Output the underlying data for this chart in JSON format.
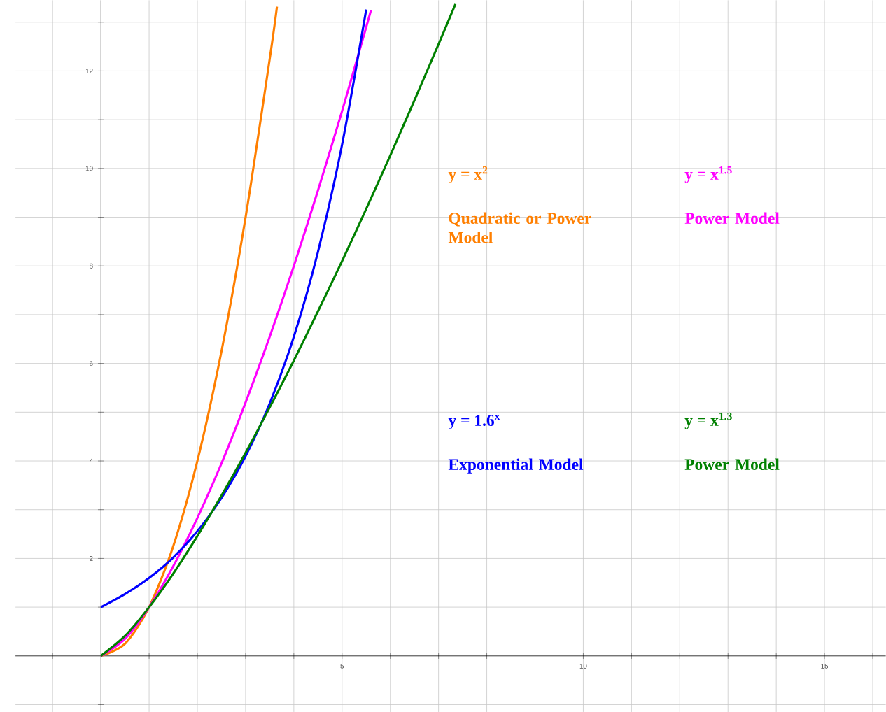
{
  "chart_data": {
    "type": "line",
    "xlim": [
      -1.77,
      16.27
    ],
    "ylim": [
      -1.15,
      13.45
    ],
    "xticks": [
      {
        "value": -1,
        "label": null
      },
      {
        "value": 0,
        "label": null
      },
      {
        "value": 1,
        "label": null
      },
      {
        "value": 2,
        "label": null
      },
      {
        "value": 3,
        "label": null
      },
      {
        "value": 4,
        "label": null
      },
      5,
      {
        "value": 6,
        "label": null
      },
      {
        "value": 7,
        "label": null
      },
      {
        "value": 8,
        "label": null
      },
      {
        "value": 9,
        "label": null
      },
      10,
      {
        "value": 11,
        "label": null
      },
      {
        "value": 12,
        "label": null
      },
      {
        "value": 13,
        "label": null
      },
      {
        "value": 14,
        "label": null
      },
      15,
      {
        "value": 16,
        "label": null
      }
    ],
    "yticks": [
      {
        "value": -1,
        "label": null
      },
      {
        "value": 0,
        "label": null
      },
      {
        "value": 1,
        "label": null
      },
      2,
      {
        "value": 3,
        "label": null
      },
      4,
      {
        "value": 5,
        "label": null
      },
      6,
      {
        "value": 7,
        "label": null
      },
      8,
      {
        "value": 9,
        "label": null
      },
      10,
      {
        "value": 11,
        "label": null
      },
      12,
      {
        "value": 13,
        "label": null
      }
    ],
    "grid": true,
    "series": [
      {
        "name": "y = x$^{2}$",
        "color": "#ff7f00",
        "x": [
          0,
          0.5,
          1,
          1.5,
          2,
          2.5,
          3,
          3.5,
          3.65
        ],
        "values": [
          0,
          0.25,
          1,
          2.25,
          4,
          6.25,
          9,
          12.25,
          13.32
        ]
      },
      {
        "name": "y = x$^{1.5}$",
        "color": "#ff00ff",
        "x": [
          0,
          0.5,
          1,
          1.5,
          2,
          2.5,
          3,
          3.5,
          4,
          4.5,
          5,
          5.5,
          5.6
        ],
        "values": [
          0,
          0.35,
          1,
          1.84,
          2.83,
          3.95,
          5.2,
          6.55,
          8,
          9.55,
          11.18,
          12.9,
          13.25
        ]
      },
      {
        "name": "y = 1.6$^{x}$",
        "color": "#0000ff",
        "x": [
          0,
          0.5,
          1,
          1.5,
          2,
          2.5,
          3,
          3.5,
          4,
          4.5,
          5,
          5.5
        ],
        "values": [
          1,
          1.27,
          1.6,
          2.02,
          2.56,
          3.24,
          4.1,
          5.18,
          6.55,
          8.29,
          10.49,
          13.26
        ]
      },
      {
        "name": "y = x$^{1.3}$",
        "color": "#008000",
        "x": [
          0,
          0.5,
          1,
          1.5,
          2,
          2.5,
          3,
          3.5,
          4,
          4.5,
          5,
          5.5,
          6,
          6.5,
          7,
          7.35
        ],
        "values": [
          0,
          0.41,
          1,
          1.69,
          2.46,
          3.29,
          4.17,
          5.1,
          6.06,
          7.07,
          8.1,
          9.17,
          10.27,
          11.4,
          12.55,
          13.37
        ]
      }
    ],
    "annotations": [
      "Quadratic or Power Model",
      "Power Model",
      "Exponential Model",
      "Power Model"
    ]
  }
}
